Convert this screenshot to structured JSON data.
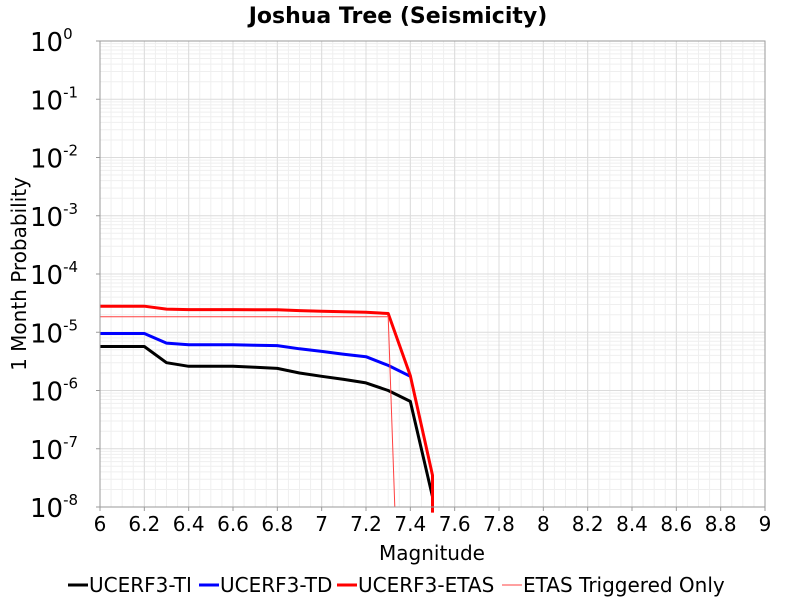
{
  "chart_data": {
    "type": "line",
    "title": "Joshua Tree (Seismicity)",
    "xlabel": "Magnitude",
    "ylabel": "1 Month Probability",
    "xlim": [
      6,
      9
    ],
    "ylim": [
      1e-08,
      1
    ],
    "yscale": "log",
    "x_ticks": [
      "6",
      "6.2",
      "6.4",
      "6.6",
      "6.8",
      "7",
      "7.2",
      "7.4",
      "7.6",
      "7.8",
      "8",
      "8.2",
      "8.4",
      "8.6",
      "8.8",
      "9"
    ],
    "y_ticks": [
      {
        "base": "10",
        "exp": "0"
      },
      {
        "base": "10",
        "exp": "-1"
      },
      {
        "base": "10",
        "exp": "-2"
      },
      {
        "base": "10",
        "exp": "-3"
      },
      {
        "base": "10",
        "exp": "-4"
      },
      {
        "base": "10",
        "exp": "-5"
      },
      {
        "base": "10",
        "exp": "-6"
      },
      {
        "base": "10",
        "exp": "-7"
      },
      {
        "base": "10",
        "exp": "-8"
      }
    ],
    "grid": true,
    "legend_position": "bottom",
    "series": [
      {
        "name": "UCERF3-TI",
        "color": "#000000",
        "x": [
          6.0,
          6.2,
          6.3,
          6.4,
          6.5,
          6.6,
          6.7,
          6.8,
          6.9,
          7.0,
          7.1,
          7.2,
          7.3,
          7.4,
          7.5
        ],
        "y": [
          5.7e-06,
          5.7e-06,
          3e-06,
          2.6e-06,
          2.6e-06,
          2.6e-06,
          2.5e-06,
          2.4e-06,
          2e-06,
          1.75e-06,
          1.55e-06,
          1.35e-06,
          1e-06,
          6.5e-07,
          1.5e-08
        ]
      },
      {
        "name": "UCERF3-TD",
        "color": "#0000ff",
        "x": [
          6.0,
          6.2,
          6.3,
          6.4,
          6.5,
          6.6,
          6.7,
          6.8,
          6.9,
          7.0,
          7.1,
          7.2,
          7.3,
          7.4
        ],
        "y": [
          9.5e-06,
          9.5e-06,
          6.5e-06,
          6.1e-06,
          6.1e-06,
          6.1e-06,
          6e-06,
          5.9e-06,
          5.2e-06,
          4.7e-06,
          4.2e-06,
          3.8e-06,
          2.7e-06,
          1.75e-06
        ]
      },
      {
        "name": "UCERF3-ETAS",
        "color": "#ff0000",
        "x": [
          6.0,
          6.2,
          6.3,
          6.4,
          6.5,
          6.6,
          6.7,
          6.8,
          6.9,
          7.0,
          7.1,
          7.2,
          7.3,
          7.4,
          7.5,
          7.5
        ],
        "y": [
          2.8e-05,
          2.8e-05,
          2.5e-05,
          2.45e-05,
          2.45e-05,
          2.45e-05,
          2.43e-05,
          2.43e-05,
          2.35e-05,
          2.3e-05,
          2.25e-05,
          2.2e-05,
          2.1e-05,
          1.8e-06,
          3.5e-08,
          8e-09
        ]
      },
      {
        "name": "ETAS Triggered Only",
        "color": "#ff4040",
        "x": [
          6.0,
          7.3,
          7.33
        ],
        "y": [
          1.85e-05,
          1.85e-05,
          1e-08
        ]
      }
    ]
  }
}
